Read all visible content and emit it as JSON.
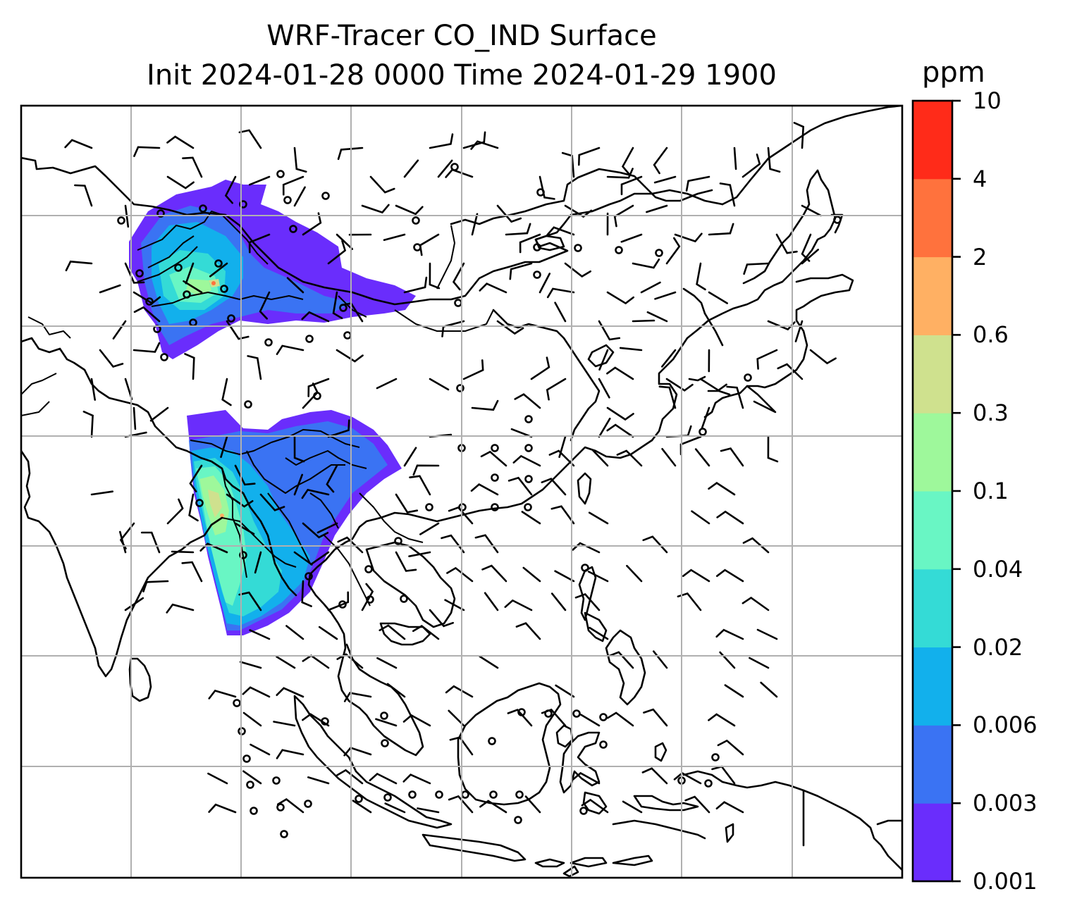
{
  "title": {
    "line1": "WRF-Tracer CO_IND Surface",
    "line2": "Init 2024-01-28 0000 Time 2024-01-29 1900"
  },
  "colorbar": {
    "unit": "ppm",
    "levels": [
      "0.001",
      "0.003",
      "0.006",
      "0.02",
      "0.04",
      "0.1",
      "0.3",
      "0.6",
      "2",
      "4",
      "10"
    ],
    "colors": [
      "#6a2dfc",
      "#3a73f3",
      "#12b0ec",
      "#34dbd6",
      "#69f6c4",
      "#9ef89b",
      "#cfe18e",
      "#ffb063",
      "#ff723d",
      "#ff2b19"
    ]
  },
  "map": {
    "plume_north_color": "#6a2dfc",
    "plume_south_color": "#3a73f3",
    "coastline_color": "#000000",
    "gridline_color": "#b0b0b0"
  }
}
